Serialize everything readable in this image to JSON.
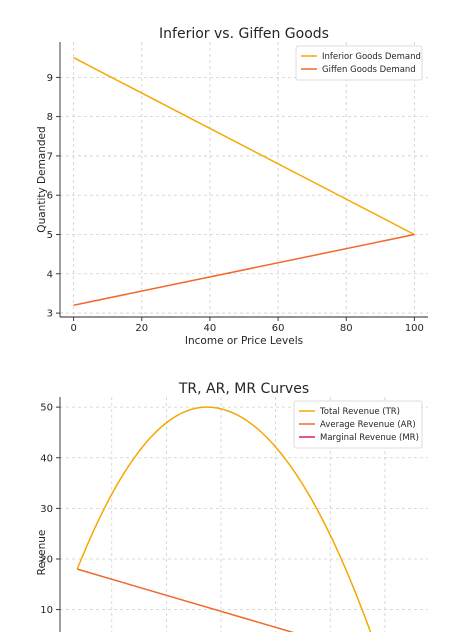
{
  "chart_data": [
    {
      "type": "line",
      "title": "Inferior vs. Giffen Goods",
      "xlabel": "Income or Price Levels",
      "ylabel": "Quantity Demanded",
      "xlim": [
        -4,
        104
      ],
      "ylim": [
        2.9,
        9.9
      ],
      "xticks": [
        0,
        20,
        40,
        60,
        80,
        100
      ],
      "yticks": [
        3,
        4,
        5,
        6,
        7,
        8,
        9
      ],
      "grid": true,
      "legend_position": "top-right",
      "series": [
        {
          "name": "Inferior Goods Demand",
          "color": "#f5a800",
          "x": [
            0,
            100
          ],
          "y": [
            9.5,
            5.0
          ]
        },
        {
          "name": "Giffen Goods Demand",
          "color": "#ef6a2a",
          "x": [
            0,
            100
          ],
          "y": [
            3.2,
            5.0
          ]
        }
      ]
    },
    {
      "type": "line",
      "title": "TR, AR, MR Curves",
      "xlabel": "",
      "ylabel": "Revenue",
      "xlim": [
        -0.6,
        12.2
      ],
      "ylim": [
        4,
        52
      ],
      "xticks": [],
      "yticks": [
        10,
        20,
        30,
        40,
        50
      ],
      "grid": true,
      "legend_position": "top-right",
      "series": [
        {
          "name": "Total Revenue (TR)",
          "color": "#f5a800",
          "curve": "tr",
          "x": [
            0,
            4.5,
            10.3
          ],
          "y": [
            18,
            50,
            4
          ]
        },
        {
          "name": "Average Revenue (AR)",
          "color": "#ef6a2a",
          "curve": "linear",
          "x": [
            0,
            7.8
          ],
          "y": [
            18,
            5
          ]
        },
        {
          "name": "Marginal Revenue (MR)",
          "color": "#d6245a",
          "curve": "none",
          "x": [],
          "y": []
        }
      ]
    }
  ]
}
